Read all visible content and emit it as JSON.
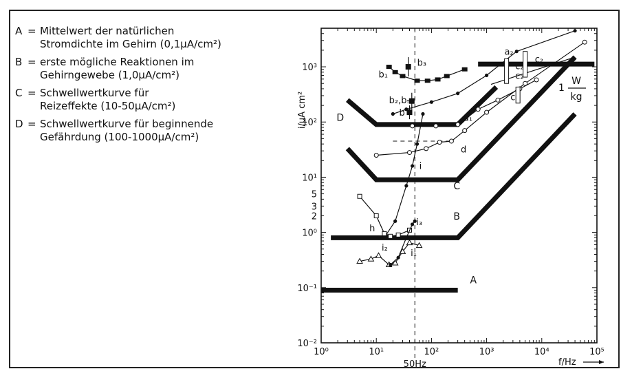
{
  "legend": [
    {
      "letter": "A",
      "eq": "=",
      "text": "Mittelwert der natürlichen\nStromdichte im Gehirn (0,1µA/cm²)"
    },
    {
      "letter": "B",
      "eq": "=",
      "text": "erste mögliche Reaktionen im\nGehirngewebe (1,0µA/cm²)"
    },
    {
      "letter": "C",
      "eq": "=",
      "text": "Schwellwertkurve für\nReizeffekte (10-50µA/cm²)"
    },
    {
      "letter": "D",
      "eq": "=",
      "text": "Schwellwertkurve für beginnende\nGefährdung (100-1000µA/cm²)"
    }
  ],
  "chart_data": {
    "type": "line",
    "xlabel": "f/Hz",
    "ylabel": "i/µA cm²",
    "xscale": "log",
    "yscale": "log",
    "xlim": [
      1,
      100000
    ],
    "ylim": [
      0.01,
      5000
    ],
    "x_tick_labels": [
      {
        "value": 1,
        "label": "10⁰"
      },
      {
        "value": 10,
        "label": "10¹"
      },
      {
        "value": 100,
        "label": "10²"
      },
      {
        "value": 1000,
        "label": "10³"
      },
      {
        "value": 10000,
        "label": "10⁴"
      },
      {
        "value": 100000,
        "label": "10⁵"
      }
    ],
    "y_tick_labels": [
      {
        "value": 0.01,
        "label": "10⁻²"
      },
      {
        "value": 0.1,
        "label": "10⁻¹"
      },
      {
        "value": 1,
        "label": "10⁰"
      },
      {
        "value": 2,
        "label": "2"
      },
      {
        "value": 3,
        "label": "3"
      },
      {
        "value": 5,
        "label": "5"
      },
      {
        "value": 10,
        "label": "10¹"
      },
      {
        "value": 100,
        "label": "10²"
      },
      {
        "value": 1000,
        "label": "10³"
      }
    ],
    "marker_line": {
      "x": 50,
      "label": "50Hz"
    },
    "annotation_unit": {
      "lead": "1",
      "numerator": "W",
      "denominator": "kg"
    },
    "threshold_lines": [
      {
        "name": "A",
        "points": [
          [
            1,
            0.09
          ],
          [
            300,
            0.09
          ]
        ],
        "label_at": [
          500,
          0.12
        ]
      },
      {
        "name": "B",
        "points": [
          [
            1.5,
            0.8
          ],
          [
            300,
            0.8
          ],
          [
            40000,
            140
          ]
        ],
        "label_at": [
          250,
          1.7
        ]
      },
      {
        "name": "C",
        "points": [
          [
            3,
            33
          ],
          [
            10,
            9
          ],
          [
            300,
            9
          ],
          [
            40000,
            1500
          ]
        ],
        "label_at": [
          250,
          6
        ]
      },
      {
        "name": "D",
        "points": [
          [
            3,
            250
          ],
          [
            10,
            90
          ],
          [
            300,
            90
          ],
          [
            1500,
            430
          ]
        ],
        "label_at": [
          1.9,
          105
        ]
      },
      {
        "name": "W/kg",
        "points": [
          [
            700,
            1120
          ],
          [
            90000,
            1120
          ]
        ]
      },
      {
        "name": "",
        "points": [
          [
            1200,
            480
          ],
          [
            40000,
            1500
          ]
        ]
      }
    ],
    "data_curves": [
      {
        "name": "b₃",
        "marker": "square-filled",
        "points": [
          [
            17,
            1000
          ],
          [
            22,
            800
          ],
          [
            30,
            680
          ],
          [
            55,
            560
          ],
          [
            85,
            560
          ],
          [
            130,
            590
          ],
          [
            190,
            680
          ],
          [
            400,
            900
          ]
        ],
        "label_at": [
          55,
          1050
        ]
      },
      {
        "name": "b₁",
        "marker": "none",
        "points": [],
        "label_at": [
          11,
          640
        ]
      },
      {
        "name": "b₂,b₅",
        "marker": "dot",
        "points": [
          [
            20,
            140
          ],
          [
            35,
            170
          ],
          [
            100,
            230
          ],
          [
            300,
            330
          ],
          [
            1000,
            700
          ],
          [
            3500,
            1900
          ],
          [
            40000,
            4500
          ]
        ],
        "label_at": [
          17,
          220
        ]
      },
      {
        "name": "b",
        "marker": "none",
        "points": [],
        "label_at": [
          26,
          130
        ]
      },
      {
        "name": "a₁",
        "marker": "circle-open",
        "points": [
          [
            45,
            85
          ],
          [
            120,
            85
          ],
          [
            300,
            90
          ],
          [
            700,
            170
          ],
          [
            1600,
            250
          ],
          [
            4000,
            400
          ],
          [
            8000,
            580
          ]
        ],
        "label_at": [
          380,
          105
        ]
      },
      {
        "name": "a₂",
        "marker": "none",
        "points": [],
        "label_at": [
          2100,
          1650
        ]
      },
      {
        "name": "d",
        "marker": "circle-open",
        "points": [
          [
            10,
            25
          ],
          [
            40,
            28
          ],
          [
            80,
            33
          ],
          [
            140,
            43
          ],
          [
            230,
            45
          ],
          [
            400,
            70
          ],
          [
            1000,
            150
          ],
          [
            5000,
            500
          ],
          [
            60000,
            2800
          ]
        ],
        "label_at": [
          340,
          28
        ]
      },
      {
        "name": "i",
        "marker": "dot",
        "points": [
          [
            11,
            0.8
          ],
          [
            15,
            0.9
          ],
          [
            22,
            1.6
          ],
          [
            35,
            7
          ],
          [
            45,
            16
          ],
          [
            55,
            40
          ],
          [
            70,
            140
          ]
        ],
        "label_at": [
          60,
          14
        ]
      },
      {
        "name": "h",
        "marker": "square-open",
        "points": [
          [
            5,
            4.5
          ],
          [
            10,
            2
          ],
          [
            14,
            0.95
          ],
          [
            18,
            0.85
          ],
          [
            25,
            0.9
          ],
          [
            40,
            1.1
          ]
        ],
        "label_at": [
          7.5,
          1.05
        ]
      },
      {
        "name": "i₂",
        "marker": "triangle-open",
        "points": [
          [
            5,
            0.3
          ],
          [
            8,
            0.33
          ],
          [
            11,
            0.38
          ],
          [
            17,
            0.26
          ],
          [
            22,
            0.28
          ],
          [
            30,
            0.45
          ],
          [
            40,
            0.65
          ],
          [
            60,
            0.58
          ]
        ],
        "label_at": [
          12.5,
          0.47
        ]
      },
      {
        "name": "i₃",
        "marker": "dot",
        "points": [
          [
            18,
            0.26
          ],
          [
            25,
            0.35
          ],
          [
            35,
            0.8
          ],
          [
            45,
            1.4
          ],
          [
            50,
            1.6
          ]
        ],
        "label_at": [
          53,
          1.35
        ]
      },
      {
        "name": "i₁",
        "marker": "none",
        "points": [],
        "label_at": [
          42,
          0.37
        ]
      },
      {
        "name": "c₁",
        "marker": "none",
        "points": [],
        "label_at": [
          2700,
          250
        ]
      },
      {
        "name": "c₂",
        "marker": "none",
        "points": [],
        "label_at": [
          3300,
          610
        ]
      },
      {
        "name": "c₂",
        "marker": "none",
        "points": [],
        "label_at": [
          3300,
          900
        ]
      },
      {
        "name": "c₂",
        "marker": "none",
        "points": [],
        "label_at": [
          7500,
          1200
        ]
      }
    ],
    "grid": false
  }
}
